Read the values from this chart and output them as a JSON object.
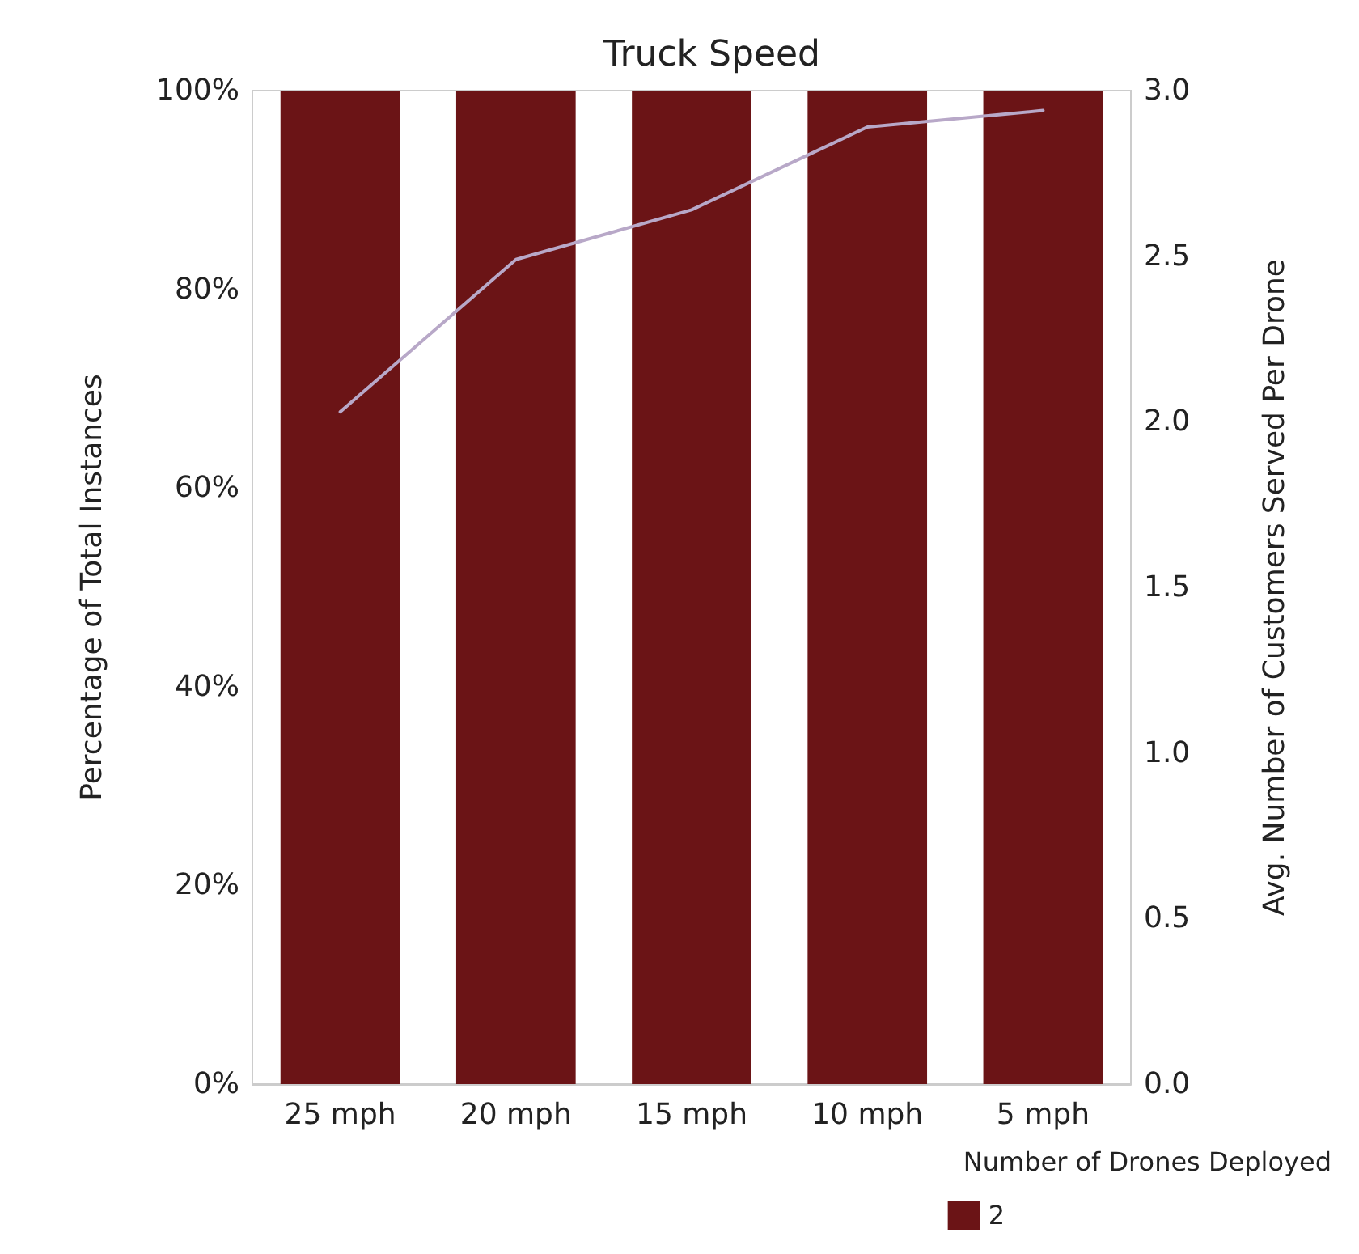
{
  "chart_data": {
    "type": "bar",
    "title": "Truck Speed",
    "ylabel": "Percentage of Total Instances",
    "y2label": "Avg. Number of Customers Served Per Drone",
    "legend_title": "Number of Drones Deployed",
    "categories": [
      "25 mph",
      "20 mph",
      "15 mph",
      "10 mph",
      "5 mph"
    ],
    "series": [
      {
        "name": "2",
        "color": "#6b1416",
        "values": [
          100,
          100,
          100,
          100,
          100
        ]
      },
      {
        "type": "line",
        "axis": "y2",
        "color": "#b8a8c8",
        "values": [
          2.03,
          2.49,
          2.64,
          2.89,
          2.94
        ]
      }
    ],
    "ylim": [
      0,
      100
    ],
    "yticks": [
      {
        "value": 0,
        "label": "0%"
      },
      {
        "value": 20,
        "label": "20%"
      },
      {
        "value": 40,
        "label": "40%"
      },
      {
        "value": 60,
        "label": "60%"
      },
      {
        "value": 80,
        "label": "80%"
      },
      {
        "value": 100,
        "label": "100%"
      }
    ],
    "y2lim": [
      0,
      3
    ],
    "y2ticks": [
      {
        "value": 0,
        "label": "0.0"
      },
      {
        "value": 0.5,
        "label": "0.5"
      },
      {
        "value": 1,
        "label": "1.0"
      },
      {
        "value": 1.5,
        "label": "1.5"
      },
      {
        "value": 2,
        "label": "2.0"
      },
      {
        "value": 2.5,
        "label": "2.5"
      },
      {
        "value": 3,
        "label": "3.0"
      }
    ],
    "legend": "bottom right",
    "marker": "none"
  }
}
